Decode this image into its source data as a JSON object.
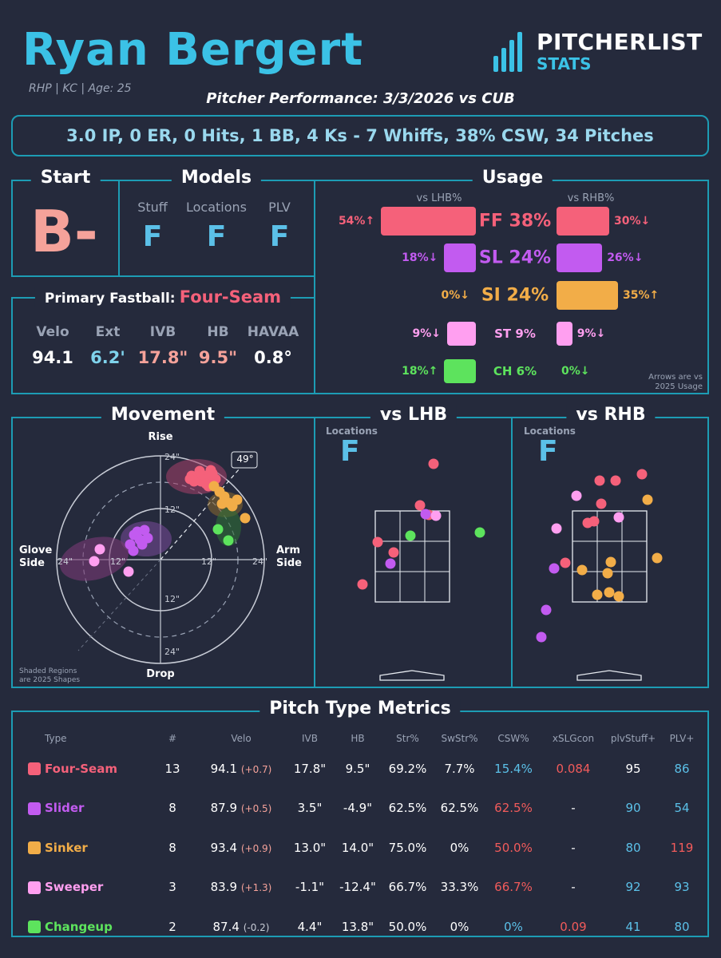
{
  "pitcher": {
    "name": "Ryan Bergert",
    "meta": "RHP | KC | Age: 25"
  },
  "logo": {
    "line1": "PITCHERLIST",
    "line2": "STATS"
  },
  "performance_title": "Pitcher Performance: 3/3/2026 vs CUB",
  "summary": "3.0 IP, 0 ER, 0 Hits, 1 BB, 4 Ks - 7 Whiffs, 38% CSW, 34 Pitches",
  "start": {
    "title": "Start",
    "grade": "B-"
  },
  "models": {
    "title": "Models",
    "items": [
      {
        "label": "Stuff",
        "grade": "F"
      },
      {
        "label": "Locations",
        "grade": "F"
      },
      {
        "label": "PLV",
        "grade": "F"
      }
    ]
  },
  "primary_fastball": {
    "label": "Primary Fastball:",
    "pitch": "Four-Seam",
    "stats": [
      {
        "label": "Velo",
        "value": "94.1",
        "color": "#ffffff"
      },
      {
        "label": "Ext",
        "value": "6.2'",
        "color": "#7fd3ec"
      },
      {
        "label": "IVB",
        "value": "17.8\"",
        "color": "#f5a29a"
      },
      {
        "label": "HB",
        "value": "9.5\"",
        "color": "#f5a29a"
      },
      {
        "label": "HAVAA",
        "value": "0.8°",
        "color": "#ffffff"
      }
    ]
  },
  "usage": {
    "title": "Usage",
    "lhb_label": "vs LHB%",
    "rhb_label": "vs RHB%",
    "note_line1": "Arrows are vs",
    "note_line2": "2025 Usage",
    "rows": [
      {
        "center": "FF 38%",
        "color": "#f5617a",
        "lhb": "54%↑",
        "rhb": "30%↓",
        "lhb_val": 54,
        "rhb_val": 30,
        "big": true
      },
      {
        "center": "SL 24%",
        "color": "#c25bf0",
        "lhb": "18%↓",
        "rhb": "26%↓",
        "lhb_val": 18,
        "rhb_val": 26,
        "big": true
      },
      {
        "center": "SI 24%",
        "color": "#f2ad48",
        "lhb": "0%↓",
        "rhb": "35%↑",
        "lhb_val": 0,
        "rhb_val": 35,
        "big": true
      },
      {
        "center": "ST 9%",
        "color": "#ff9ff0",
        "lhb": "9%↓",
        "rhb": "9%↓",
        "lhb_val": 9,
        "rhb_val": 9,
        "big": false
      },
      {
        "center": "CH 6%",
        "color": "#5de35d",
        "lhb": "18%↑",
        "rhb": "0%↓",
        "lhb_val": 18,
        "rhb_val": 0,
        "big": false
      }
    ]
  },
  "movement": {
    "title": "Movement",
    "rise": "Rise",
    "drop": "Drop",
    "glove": "Glove Side",
    "arm": "Arm Side",
    "arm_angle": "49°",
    "ring_24": "24\"",
    "ring_12": "12\"",
    "note_line1": "Shaded Regions",
    "note_line2": "are 2025 Shapes"
  },
  "locations": {
    "lhb": {
      "title": "vs LHB",
      "label": "Locations",
      "grade": "F"
    },
    "rhb": {
      "title": "vs RHB",
      "label": "Locations",
      "grade": "F"
    }
  },
  "metrics": {
    "title": "Pitch Type Metrics",
    "headers": [
      "Type",
      "#",
      "Velo",
      "IVB",
      "HB",
      "Str%",
      "SwStr%",
      "CSW%",
      "xSLGcon",
      "plvStuff+",
      "PLV+"
    ],
    "rows": [
      {
        "type": "Four-Seam",
        "color": "#f5617a",
        "n": "13",
        "velo": "94.1",
        "delta": "(+0.7)",
        "ivb": "17.8\"",
        "hb": "9.5\"",
        "str": "69.2%",
        "swstr": "7.7%",
        "csw": "15.4%",
        "xslg": "0.084",
        "stuff": "95",
        "plv": "86"
      },
      {
        "type": "Slider",
        "color": "#c25bf0",
        "n": "8",
        "velo": "87.9",
        "delta": "(+0.5)",
        "ivb": "3.5\"",
        "hb": "-4.9\"",
        "str": "62.5%",
        "swstr": "62.5%",
        "csw": "62.5%",
        "xslg": "-",
        "stuff": "90",
        "plv": "54"
      },
      {
        "type": "Sinker",
        "color": "#f2ad48",
        "n": "8",
        "velo": "93.4",
        "delta": "(+0.9)",
        "ivb": "13.0\"",
        "hb": "14.0\"",
        "str": "75.0%",
        "swstr": "0%",
        "csw": "50.0%",
        "xslg": "-",
        "stuff": "80",
        "plv": "119"
      },
      {
        "type": "Sweeper",
        "color": "#ff9ff0",
        "n": "3",
        "velo": "83.9",
        "delta": "(+1.3)",
        "ivb": "-1.1\"",
        "hb": "-12.4\"",
        "str": "66.7%",
        "swstr": "33.3%",
        "csw": "66.7%",
        "xslg": "-",
        "stuff": "92",
        "plv": "93"
      },
      {
        "type": "Changeup",
        "color": "#5de35d",
        "n": "2",
        "velo": "87.4",
        "delta": "(-0.2)",
        "ivb": "4.4\"",
        "hb": "13.8\"",
        "str": "50.0%",
        "swstr": "0%",
        "csw": "0%",
        "xslg": "0.09",
        "stuff": "41",
        "plv": "80"
      }
    ]
  }
}
